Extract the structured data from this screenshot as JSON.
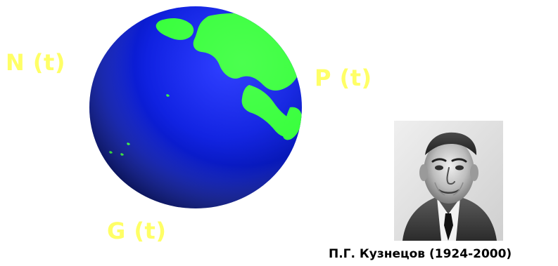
{
  "labels": {
    "n": "N (t)",
    "p": "P (t)",
    "g": "G (t)"
  },
  "portrait": {
    "caption": "П.Г. Кузнецов (1924-2000)"
  },
  "colors": {
    "background": "#ffffff",
    "label": "#ffff66",
    "globe_ocean": "#0000cc",
    "globe_land": "#33ff33",
    "caption": "#000000"
  },
  "icons": {
    "globe": "earth-globe-icon"
  }
}
